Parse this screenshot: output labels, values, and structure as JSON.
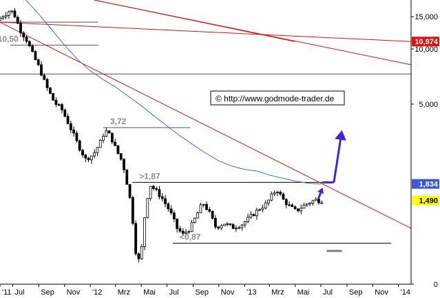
{
  "chart_data": {
    "type": "candlestick",
    "title": "",
    "watermark": "© http://www.godmode-trader.de",
    "y_scale": "log",
    "ylim": [
      0.52,
      18.5
    ],
    "xlim": [
      "2011-06-01",
      "2014-01-31"
    ],
    "y_ticks": [
      {
        "label": "15,000",
        "value": 15
      },
      {
        "label": "10,000",
        "value": 10
      },
      {
        "label": "5,000",
        "value": 5
      },
      {
        "label": "0",
        "value": 0.52
      }
    ],
    "x_ticks": [
      {
        "label": "'11",
        "date": "2011-06-01"
      },
      {
        "label": "Jul",
        "date": "2011-07-01"
      },
      {
        "label": "Sep",
        "date": "2011-09-01"
      },
      {
        "label": "Nov",
        "date": "2011-11-01"
      },
      {
        "label": "'12",
        "date": "2012-01-01"
      },
      {
        "label": "Mrz",
        "date": "2012-03-01"
      },
      {
        "label": "Mai",
        "date": "2012-05-01"
      },
      {
        "label": "Jul",
        "date": "2012-07-01"
      },
      {
        "label": "Sep",
        "date": "2012-09-01"
      },
      {
        "label": "Nov",
        "date": "2012-11-01"
      },
      {
        "label": "'13",
        "date": "2013-01-01"
      },
      {
        "label": "Mrz",
        "date": "2013-03-01"
      },
      {
        "label": "Mai",
        "date": "2013-05-01"
      },
      {
        "label": "Jul",
        "date": "2013-07-01"
      },
      {
        "label": "Sep",
        "date": "2013-09-01"
      },
      {
        "label": "Nov",
        "date": "2013-11-01"
      },
      {
        "label": "'14",
        "date": "2014-01-01"
      }
    ],
    "price_badges": [
      {
        "label": "10,974",
        "value": 10.974,
        "bg": "#e01010",
        "fg": "#ffffff"
      },
      {
        "label": "1,834",
        "value": 1.834,
        "bg": "#3a5bd8",
        "fg": "#ffffff"
      },
      {
        "label": "1,490",
        "value": 1.49,
        "bg": "#ffff00",
        "fg": "#000000"
      }
    ],
    "horizontal_levels": [
      {
        "value": 14.0,
        "from": "2011-06-01",
        "to": "2012-01-20",
        "color": "#555555"
      },
      {
        "value": 10.5,
        "from": "2011-06-25",
        "to": "2012-01-20",
        "color": "#555555",
        "label": "10,50"
      },
      {
        "value": 7.3,
        "from": "2011-06-01",
        "to": "2014-01-31",
        "color": "#555555"
      },
      {
        "value": 3.72,
        "from": "2012-02-01",
        "to": "2012-08-25",
        "color": "#555555",
        "label": "3,72"
      },
      {
        "value": 1.87,
        "from": "2012-04-10",
        "to": "2013-07-05",
        "color": "#000000",
        "label": ">1,87"
      },
      {
        "value": 0.87,
        "from": "2012-07-15",
        "to": "2013-12-15",
        "color": "#000000",
        "label": "<0,87"
      }
    ],
    "trendlines": [
      {
        "from": [
          "2011-06-01",
          14.0
        ],
        "to": [
          "2013-07-05",
          1.834
        ],
        "extend_to": "2014-01-31",
        "color": "#e01010"
      },
      {
        "from": [
          "2011-06-01",
          14.0
        ],
        "to": [
          "2014-01-31",
          10.974
        ],
        "color": "#e01010"
      },
      {
        "from": [
          "2012-01-10",
          18.5
        ],
        "to": [
          "2013-04-30",
          10.974
        ],
        "color": "#e01010"
      },
      {
        "from": [
          "2012-01-10",
          18.5
        ],
        "to": [
          "2014-01-31",
          8.2
        ],
        "color": "#e01010"
      }
    ],
    "moving_average": {
      "color": "#3a6fd0",
      "points": [
        [
          "2011-08-01",
          18.5
        ],
        [
          "2011-09-01",
          15.5
        ],
        [
          "2011-10-01",
          12.8
        ],
        [
          "2011-11-01",
          10.5
        ],
        [
          "2011-12-01",
          8.8
        ],
        [
          "2012-01-01",
          7.6
        ],
        [
          "2012-02-01",
          6.8
        ],
        [
          "2012-03-01",
          6.2
        ],
        [
          "2012-04-01",
          5.5
        ],
        [
          "2012-05-01",
          4.9
        ],
        [
          "2012-06-01",
          4.3
        ],
        [
          "2012-07-01",
          3.8
        ],
        [
          "2012-08-01",
          3.35
        ],
        [
          "2012-09-01",
          3.0
        ],
        [
          "2012-10-01",
          2.7
        ],
        [
          "2012-11-01",
          2.45
        ],
        [
          "2012-12-01",
          2.3
        ],
        [
          "2013-01-01",
          2.2
        ],
        [
          "2013-02-01",
          2.15
        ],
        [
          "2013-03-01",
          2.05
        ],
        [
          "2013-04-01",
          1.97
        ],
        [
          "2013-05-01",
          1.9
        ],
        [
          "2013-06-01",
          1.85
        ],
        [
          "2013-07-01",
          1.83
        ]
      ]
    },
    "projection": {
      "color": "#4422dd",
      "sideways": [
        [
          "2013-07-05",
          1.87
        ],
        [
          "2013-07-30",
          1.87
        ],
        [
          "2013-08-01",
          1.87
        ]
      ],
      "up_arrow": {
        "from": [
          "2013-06-25",
          1.52
        ],
        "to": [
          "2013-07-05",
          1.75
        ]
      },
      "big_arrow": {
        "from": [
          "2013-08-01",
          1.87
        ],
        "to": [
          "2013-08-20",
          3.6
        ]
      }
    },
    "target_mark": {
      "value": 0.79,
      "from": "2013-07-15",
      "to": "2013-08-20",
      "color": "#808080"
    },
    "price_waypoints": [
      [
        "2011-06-01",
        14.3
      ],
      [
        "2011-06-15",
        15.2
      ],
      [
        "2011-07-01",
        16.2
      ],
      [
        "2011-07-10",
        15.8
      ],
      [
        "2011-07-25",
        12.8
      ],
      [
        "2011-08-10",
        11.2
      ],
      [
        "2011-08-25",
        9.3
      ],
      [
        "2011-09-10",
        7.8
      ],
      [
        "2011-09-25",
        6.3
      ],
      [
        "2011-10-15",
        5.1
      ],
      [
        "2011-11-01",
        4.7
      ],
      [
        "2011-11-20",
        3.8
      ],
      [
        "2011-12-10",
        3.0
      ],
      [
        "2011-12-28",
        2.5
      ],
      [
        "2012-01-15",
        2.65
      ],
      [
        "2012-02-01",
        3.1
      ],
      [
        "2012-02-12",
        3.6
      ],
      [
        "2012-02-25",
        3.35
      ],
      [
        "2012-03-10",
        2.8
      ],
      [
        "2012-03-25",
        2.4
      ],
      [
        "2012-04-10",
        1.6
      ],
      [
        "2012-04-20",
        1.05
      ],
      [
        "2012-04-28",
        0.66
      ],
      [
        "2012-05-08",
        0.78
      ],
      [
        "2012-05-18",
        1.35
      ],
      [
        "2012-05-28",
        1.82
      ],
      [
        "2012-06-10",
        1.7
      ],
      [
        "2012-06-25",
        1.55
      ],
      [
        "2012-07-15",
        1.3
      ],
      [
        "2012-08-01",
        1.05
      ],
      [
        "2012-08-15",
        0.97
      ],
      [
        "2012-09-01",
        1.05
      ],
      [
        "2012-09-15",
        1.22
      ],
      [
        "2012-10-01",
        1.45
      ],
      [
        "2012-10-15",
        1.3
      ],
      [
        "2012-11-01",
        1.06
      ],
      [
        "2012-11-20",
        1.12
      ],
      [
        "2012-12-10",
        1.06
      ],
      [
        "2013-01-01",
        1.1
      ],
      [
        "2013-01-20",
        1.2
      ],
      [
        "2013-02-10",
        1.33
      ],
      [
        "2013-03-01",
        1.43
      ],
      [
        "2013-03-15",
        1.6
      ],
      [
        "2013-03-25",
        1.72
      ],
      [
        "2013-04-10",
        1.5
      ],
      [
        "2013-04-25",
        1.38
      ],
      [
        "2013-05-10",
        1.3
      ],
      [
        "2013-05-25",
        1.38
      ],
      [
        "2013-06-10",
        1.45
      ],
      [
        "2013-06-25",
        1.5
      ],
      [
        "2013-07-03",
        1.49
      ]
    ]
  }
}
